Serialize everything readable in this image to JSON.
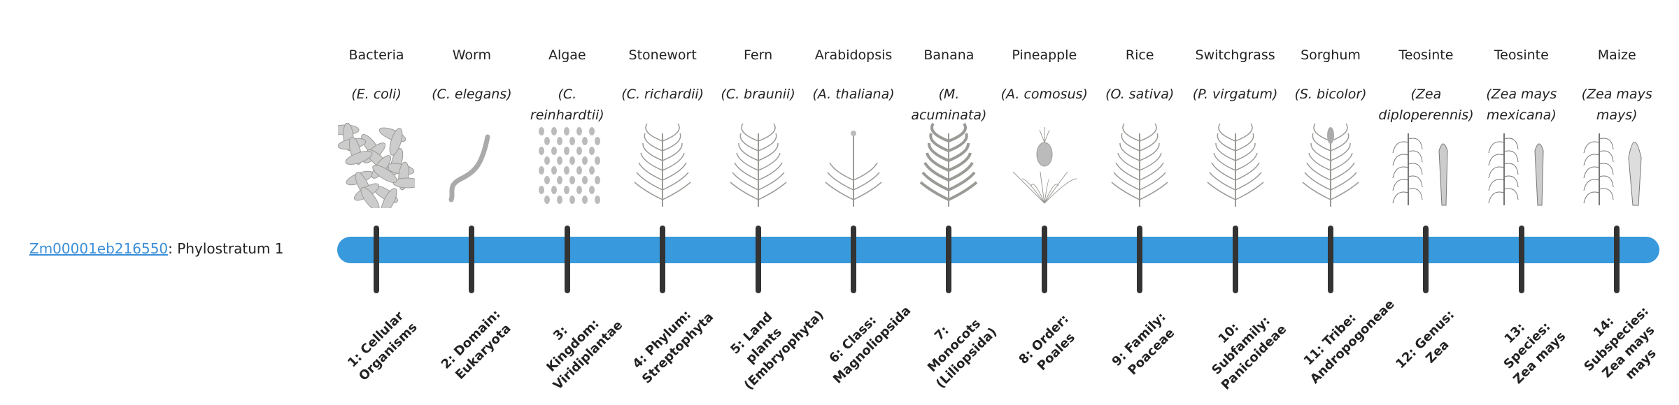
{
  "gene": {
    "id": "Zm00001eb216550",
    "suffix": ": Phylostratum 1"
  },
  "colors": {
    "bar": "#3899dc",
    "tick": "#333333",
    "link": "#3a8ed8"
  },
  "strata": [
    {
      "common": "Bacteria",
      "scientific": "(E. coli)",
      "icon": "bacteria-icon",
      "label": "1: Cellular Organisms"
    },
    {
      "common": "Worm",
      "scientific": "(C. elegans)",
      "icon": "worm-icon",
      "label": "2: Domain: Eukaryota"
    },
    {
      "common": "Algae",
      "scientific": "(C. reinhardtii)",
      "icon": "algae-icon",
      "label": "3: Kingdom: Viridiplantae"
    },
    {
      "common": "Stonewort",
      "scientific": "(C. richardii)",
      "icon": "stonewort-icon",
      "label": "4: Phylum: Streptophyta"
    },
    {
      "common": "Fern",
      "scientific": "(C. braunii)",
      "icon": "fern-icon",
      "label": "5: Land plants (Embryophyta)"
    },
    {
      "common": "Arabidopsis",
      "scientific": "(A. thaliana)",
      "icon": "arabidopsis-icon",
      "label": "6: Class: Magnoliopsida"
    },
    {
      "common": "Banana",
      "scientific": "(M. acuminata)",
      "icon": "banana-icon",
      "label": "7: Monocots (Liliopsida)"
    },
    {
      "common": "Pineapple",
      "scientific": "(A. comosus)",
      "icon": "pineapple-icon",
      "label": "8: Order: Poales"
    },
    {
      "common": "Rice",
      "scientific": "(O. sativa)",
      "icon": "rice-icon",
      "label": "9: Family: Poaceae"
    },
    {
      "common": "Switchgrass",
      "scientific": "(P. virgatum)",
      "icon": "switchgrass-icon",
      "label": "10: Subfamily: Panicoideae"
    },
    {
      "common": "Sorghum",
      "scientific": "(S. bicolor)",
      "icon": "sorghum-icon",
      "label": "11: Tribe: Andropogoneae"
    },
    {
      "common": "Teosinte",
      "scientific": "(Zea diploperennis)",
      "icon": "teosinte-icon",
      "label": "12: Genus: Zea"
    },
    {
      "common": "Teosinte",
      "scientific": "(Zea mays mexicana)",
      "icon": "teosinte-icon",
      "label": "13: Species: Zea mays"
    },
    {
      "common": "Maize",
      "scientific": "(Zea mays mays)",
      "icon": "maize-icon",
      "label": "14: Subspecies: Zea mays mays"
    }
  ]
}
